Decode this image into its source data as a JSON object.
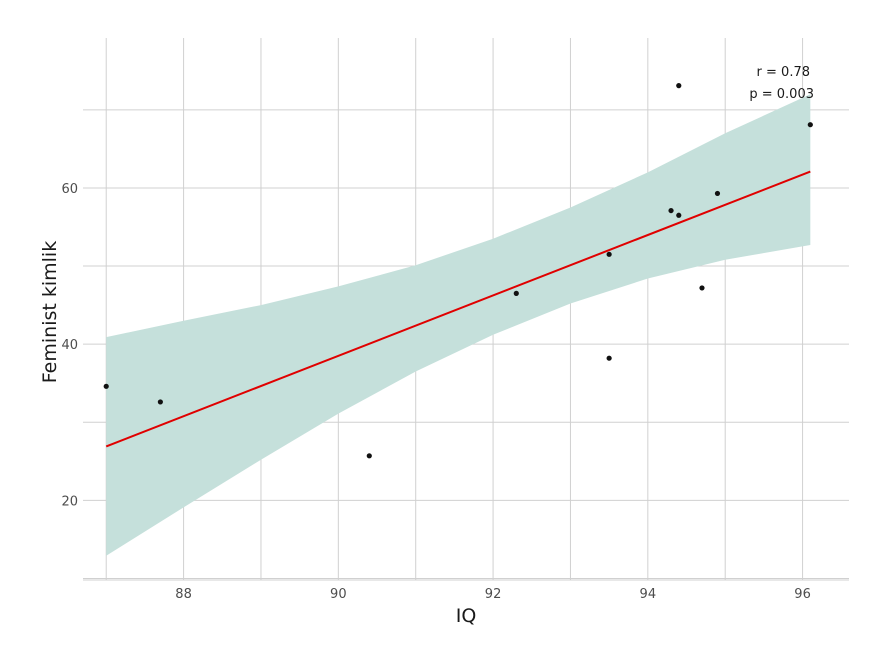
{
  "chart_data": {
    "type": "scatter",
    "title": "",
    "xlabel": "IQ",
    "ylabel": "Feminist kimlik",
    "xlim": [
      86.7,
      96.6
    ],
    "ylim": [
      9.8,
      79.2
    ],
    "x_ticks": [
      88,
      90,
      92,
      94,
      96
    ],
    "y_ticks": [
      20,
      40,
      60
    ],
    "grid": true,
    "points": [
      {
        "x": 87.0,
        "y": 34.6
      },
      {
        "x": 87.7,
        "y": 32.6
      },
      {
        "x": 90.4,
        "y": 25.7
      },
      {
        "x": 92.3,
        "y": 46.5
      },
      {
        "x": 93.5,
        "y": 51.5
      },
      {
        "x": 93.5,
        "y": 38.2
      },
      {
        "x": 94.3,
        "y": 57.1
      },
      {
        "x": 94.4,
        "y": 56.5
      },
      {
        "x": 94.4,
        "y": 73.1
      },
      {
        "x": 94.7,
        "y": 47.2
      },
      {
        "x": 94.9,
        "y": 59.3
      },
      {
        "x": 96.1,
        "y": 68.1
      }
    ],
    "regression": {
      "x": [
        87.0,
        96.1
      ],
      "y": [
        26.9,
        62.1
      ],
      "color": "#e00000"
    },
    "confidence_band": {
      "x": [
        87.0,
        88.0,
        89.0,
        90.0,
        91.0,
        92.0,
        93.0,
        94.0,
        95.0,
        96.1
      ],
      "lower": [
        12.9,
        19.1,
        25.2,
        31.1,
        36.5,
        41.2,
        45.2,
        48.4,
        50.8,
        52.7
      ],
      "upper": [
        40.9,
        43.0,
        45.0,
        47.4,
        50.1,
        53.5,
        57.5,
        62.0,
        67.0,
        72.0
      ],
      "color": "#c5e0db"
    },
    "annotations": [
      "r = 0.78",
      "p = 0.003"
    ]
  }
}
